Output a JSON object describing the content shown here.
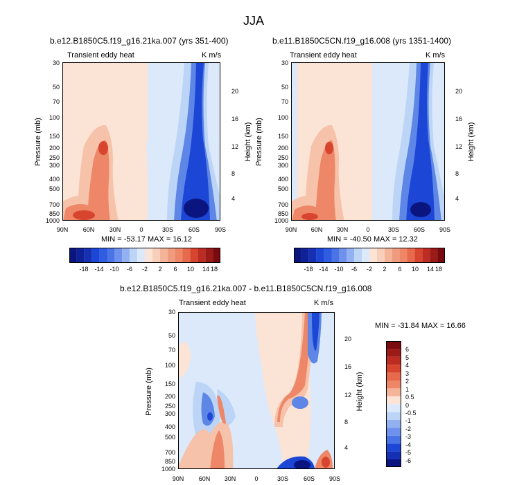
{
  "figure": {
    "main_title": "JJA",
    "colors": {
      "neg_dark": "#0b1580",
      "neg_mid": "#1c46d6",
      "neg_light": "#5d86e6",
      "neg_pale": "#bcd5f6",
      "neg_faint": "#dbe9fb",
      "pos_faint": "#fbe4d6",
      "pos_pale": "#f6c2aa",
      "pos_mid": "#ee8668",
      "pos_strong": "#d8452e",
      "pos_dark": "#7a0a10"
    }
  },
  "chart_data": [
    {
      "type": "heatmap",
      "title": "b.e12.B1850C5.f19_g16.21ka.007 (yrs 351-400)",
      "left_string": "Transient eddy heat",
      "right_string": "K m/s",
      "xlabel": "",
      "ylabel": "Pressure (mb)",
      "ylabel_right": "Height (km)",
      "x_ticks": [
        "90N",
        "60N",
        "30N",
        "0",
        "30S",
        "60S",
        "90S"
      ],
      "y_ticks": [
        "30",
        "50",
        "70",
        "100",
        "150",
        "200",
        "250",
        "300",
        "400",
        "500",
        "700",
        "850",
        "1000"
      ],
      "y_right_ticks": [
        "20",
        "16",
        "12",
        "8",
        "4"
      ],
      "stats": "MIN = -53.17  MAX = 16.12",
      "colorbar_labels": [
        "-18",
        "-14",
        "-10",
        "-6",
        "-2",
        "2",
        "6",
        "10",
        "14",
        "18"
      ],
      "min": -53.17,
      "max": 16.12
    },
    {
      "type": "heatmap",
      "title": "b.e11.B1850C5CN.f19_g16.008 (yrs 1351-1400)",
      "left_string": "Transient eddy heat",
      "right_string": "K m/s",
      "xlabel": "",
      "ylabel": "Pressure (mb)",
      "ylabel_right": "Height (km)",
      "x_ticks": [
        "90N",
        "60N",
        "30N",
        "0",
        "30S",
        "60S",
        "90S"
      ],
      "y_ticks": [
        "30",
        "50",
        "70",
        "100",
        "150",
        "200",
        "250",
        "300",
        "400",
        "500",
        "700",
        "850",
        "1000"
      ],
      "y_right_ticks": [
        "20",
        "16",
        "12",
        "8",
        "4"
      ],
      "stats": "MIN = -40.50  MAX = 12.32",
      "colorbar_labels": [
        "-18",
        "-14",
        "-10",
        "-6",
        "-2",
        "2",
        "6",
        "10",
        "14",
        "18"
      ],
      "min": -40.5,
      "max": 12.32
    },
    {
      "type": "heatmap",
      "title": "b.e12.B1850C5.f19_g16.21ka.007 - b.e11.B1850C5CN.f19_g16.008",
      "left_string": "Transient eddy heat",
      "right_string": "K m/s",
      "xlabel": "",
      "ylabel": "Pressure (mb)",
      "ylabel_right": "Height (km)",
      "x_ticks": [
        "90N",
        "60N",
        "30N",
        "0",
        "30S",
        "60S",
        "90S"
      ],
      "y_ticks": [
        "30",
        "50",
        "70",
        "100",
        "150",
        "200",
        "250",
        "300",
        "400",
        "500",
        "700",
        "850",
        "1000"
      ],
      "y_right_ticks": [
        "20",
        "16",
        "12",
        "8",
        "4"
      ],
      "stats": "MIN = -31.84  MAX = 16.66",
      "colorbar_labels": [
        "6",
        "5",
        "4",
        "3",
        "2",
        "1",
        "0.5",
        "0",
        "-0.5",
        "-1",
        "-2",
        "-3",
        "-4",
        "-5",
        "-6"
      ],
      "min": -31.84,
      "max": 16.66
    }
  ]
}
